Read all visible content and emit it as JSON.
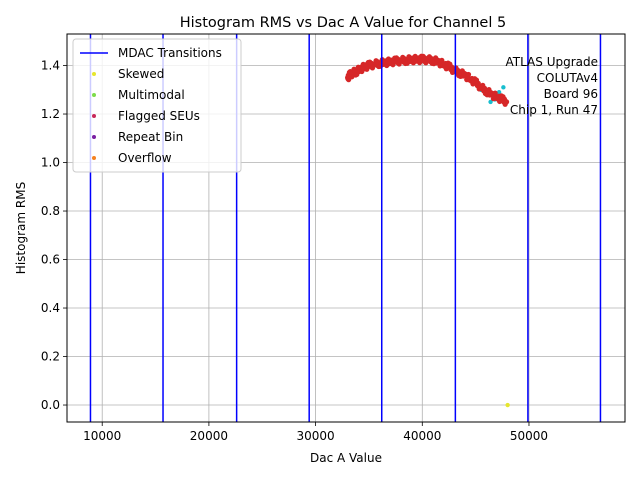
{
  "chart_data": {
    "type": "scatter",
    "title": "Histogram RMS vs Dac A Value for Channel 5",
    "xlabel": "Dac A Value",
    "ylabel": "Histogram RMS",
    "xlim": [
      6700,
      59000
    ],
    "ylim": [
      -0.07,
      1.53
    ],
    "xticks": [
      10000,
      20000,
      30000,
      40000,
      50000
    ],
    "yticks": [
      0.0,
      0.2,
      0.4,
      0.6,
      0.8,
      1.0,
      1.2,
      1.4
    ],
    "grid": true,
    "legend_position": "top-left",
    "annotation": [
      "ATLAS Upgrade",
      "COLUTAv4",
      "Board 96",
      "Chip 1, Run 47"
    ],
    "mdac_transitions": [
      8900,
      15700,
      22600,
      29400,
      36200,
      43100,
      49900,
      56700
    ],
    "legend": [
      {
        "name": "MDAC Transitions",
        "kind": "line",
        "color": "#0000ff"
      },
      {
        "name": "Skewed",
        "kind": "dot",
        "color": "#e6e62e"
      },
      {
        "name": "Multimodal",
        "kind": "dot",
        "color": "#7ddc4a"
      },
      {
        "name": "Flagged SEUs",
        "kind": "dot",
        "color": "#c8285a"
      },
      {
        "name": "Repeat Bin",
        "kind": "dot",
        "color": "#7a1fa2"
      },
      {
        "name": "Overflow",
        "kind": "dot",
        "color": "#f58220"
      }
    ],
    "series": [
      {
        "name": "",
        "color": "#17becf",
        "x": [
          45500,
          46000,
          46400,
          46800,
          47200,
          47600
        ],
        "y": [
          1.3,
          1.28,
          1.25,
          1.26,
          1.29,
          1.31
        ]
      },
      {
        "name": "",
        "color": "#d62728",
        "x": [
          33000,
          33200,
          33500,
          33800,
          34200,
          34600,
          35000,
          35500,
          36000,
          36500,
          37000,
          37500,
          38000,
          38500,
          39000,
          39500,
          40000,
          40500,
          41000,
          41500,
          42000,
          42500,
          43000,
          43500,
          44000,
          44500,
          45000,
          45500,
          46000,
          46500,
          47000,
          47500,
          47900
        ],
        "y": [
          1.35,
          1.36,
          1.37,
          1.375,
          1.385,
          1.395,
          1.4,
          1.405,
          1.41,
          1.412,
          1.415,
          1.418,
          1.42,
          1.422,
          1.424,
          1.425,
          1.425,
          1.424,
          1.422,
          1.415,
          1.405,
          1.395,
          1.38,
          1.37,
          1.36,
          1.345,
          1.33,
          1.31,
          1.295,
          1.28,
          1.27,
          1.26,
          1.25
        ]
      },
      {
        "name": "Skewed",
        "color": "#e6e62e",
        "x": [
          48000
        ],
        "y": [
          0.0
        ]
      }
    ]
  }
}
